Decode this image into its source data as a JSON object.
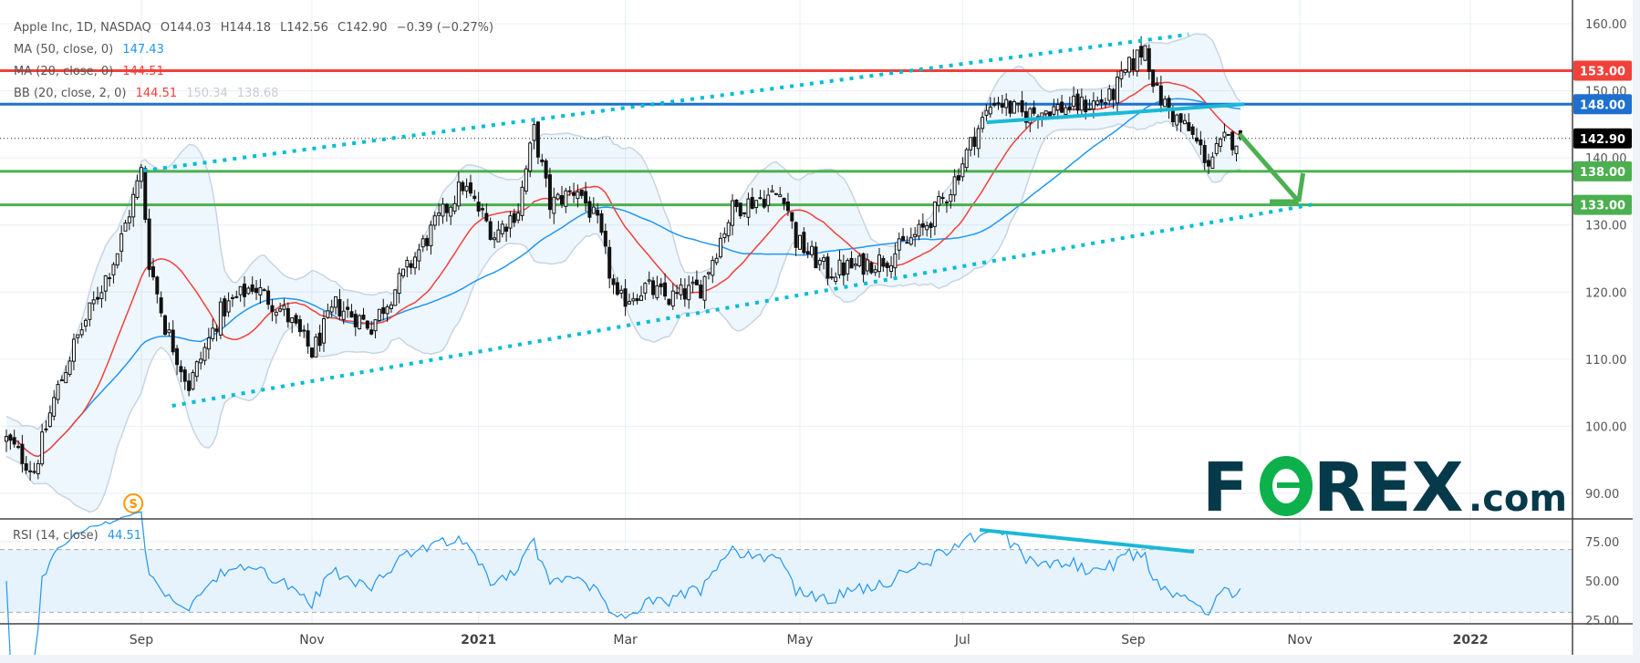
{
  "legend": {
    "symbol": "Apple Inc, 1D, NASDAQ",
    "open": "O144.03",
    "high": "H144.18",
    "low": "L142.56",
    "close": "C142.90",
    "change": "−0.39 (−0.27%)",
    "ma50_label": "MA (50, close, 0)",
    "ma50_value": "147.43",
    "ma20_label": "MA (20, close, 0)",
    "ma20_value": "144.51",
    "bb_label": "BB (20, close, 2, 0)",
    "bb_basis": "144.51",
    "bb_upper": "150.34",
    "bb_lower": "138.68",
    "rsi_label": "RSI (14, close)",
    "rsi_value": "44.51"
  },
  "colors": {
    "ma50": "#2196f3",
    "ma20": "#f23f3a",
    "bb_fill": "#2196f3",
    "bb_border": "#c8d4e2",
    "level_red": "#f0413a",
    "level_blue": "#1e70cf",
    "level_green": "#4caf50",
    "channel": "#00bcd4",
    "trend": "#1ab9d6",
    "arrow": "#4caf50",
    "rsi": "#2196f3",
    "logo_dark": "#063a4b",
    "logo_green": "#0db14b",
    "marker": "#ff9800"
  },
  "chart_data": {
    "type": "candlestick",
    "title": "Apple Inc, 1D, NASDAQ",
    "last_bar": {
      "open": 144.03,
      "high": 144.18,
      "low": 142.56,
      "close": 142.9
    },
    "price_path": [
      [
        0,
        98
      ],
      [
        7,
        93.4
      ],
      [
        12,
        104
      ],
      [
        17,
        112
      ],
      [
        28,
        126
      ],
      [
        34,
        138
      ],
      [
        36,
        124.6
      ],
      [
        40,
        115
      ],
      [
        46,
        106
      ],
      [
        54,
        117
      ],
      [
        62,
        121
      ],
      [
        70,
        117
      ],
      [
        77,
        111
      ],
      [
        83,
        118
      ],
      [
        92,
        115
      ],
      [
        99,
        121.5
      ],
      [
        107,
        129
      ],
      [
        115,
        136
      ],
      [
        123,
        128.5
      ],
      [
        129,
        132.4
      ],
      [
        133,
        144
      ],
      [
        137,
        133
      ],
      [
        144,
        135.5
      ],
      [
        149,
        130
      ],
      [
        154,
        118.4
      ],
      [
        161,
        120.7
      ],
      [
        167,
        119
      ],
      [
        175,
        120.7
      ],
      [
        183,
        132.4
      ],
      [
        190,
        134
      ],
      [
        196,
        134.7
      ],
      [
        199,
        127.7
      ],
      [
        207,
        123
      ],
      [
        215,
        124
      ],
      [
        222,
        125
      ],
      [
        231,
        129.3
      ],
      [
        238,
        135.5
      ],
      [
        244,
        143.3
      ],
      [
        249,
        148.8
      ],
      [
        256,
        146.4
      ],
      [
        262,
        147.2
      ],
      [
        273,
        148
      ],
      [
        278,
        148.8
      ],
      [
        283,
        153.5
      ],
      [
        287,
        156.6
      ],
      [
        290,
        149.5
      ],
      [
        294,
        146.4
      ],
      [
        298,
        144
      ],
      [
        303,
        139.4
      ],
      [
        307,
        142.5
      ],
      [
        311,
        142.9
      ]
    ],
    "y_axis": {
      "ticks": [
        "160.00",
        "150.00",
        "140.00",
        "130.00",
        "120.00",
        "110.00",
        "100.00",
        "90.00"
      ],
      "range": [
        87,
        163
      ]
    },
    "rsi_axis": {
      "ticks": [
        "75.00",
        "50.00",
        "25.00"
      ],
      "band": [
        30,
        70
      ]
    },
    "time_axis": [
      {
        "label": "Sep",
        "bar": 34
      },
      {
        "label": "Nov",
        "bar": 77
      },
      {
        "label": "2021",
        "bar": 119,
        "bold": true
      },
      {
        "label": "Mar",
        "bar": 156
      },
      {
        "label": "May",
        "bar": 200
      },
      {
        "label": "Jul",
        "bar": 241
      },
      {
        "label": "Sep",
        "bar": 284
      },
      {
        "label": "Nov",
        "bar": 326
      },
      {
        "label": "2022",
        "bar": 369,
        "bold": true
      }
    ],
    "levels": [
      {
        "price": 153,
        "label": "153.00",
        "color": "level_red"
      },
      {
        "price": 148,
        "label": "148.00",
        "color": "level_blue"
      },
      {
        "price": 138,
        "label": "138.00",
        "color": "level_green"
      },
      {
        "price": 133,
        "label": "133.00",
        "color": "level_green"
      }
    ],
    "last_price_label": "142.90",
    "last_price": 142.9,
    "channel_upper": [
      [
        34.5,
        138.1
      ],
      [
        298,
        158.4
      ]
    ],
    "channel_lower": [
      [
        41.8,
        103.05
      ],
      [
        329.7,
        133.1
      ]
    ],
    "trendline": [
      [
        247,
        145.3
      ],
      [
        312,
        148.0
      ]
    ],
    "arrow": {
      "from": [
        310.8,
        143.55
      ],
      "to": [
        325.7,
        133.5
      ],
      "head_top": [
        326.8,
        137.7
      ],
      "head_left": [
        318.4,
        133.5
      ]
    },
    "rsi_trendline": [
      [
        245.3,
        82.6
      ],
      [
        299.3,
        68.6
      ]
    ],
    "split_marker": {
      "bar": 32,
      "label": "S"
    }
  },
  "logo": {
    "f": "F",
    "o": "O",
    "rex": "REX",
    "com": ".com"
  }
}
